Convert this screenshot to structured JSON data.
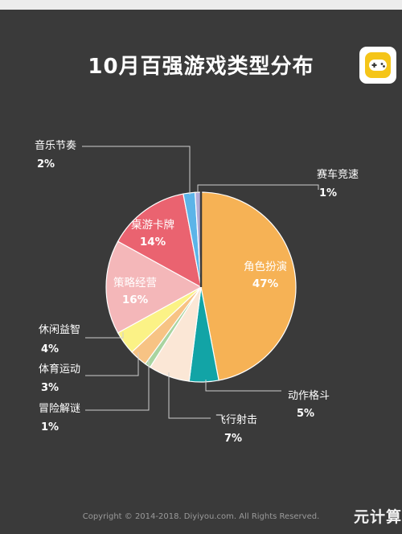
{
  "title": "10月百强游戏类型分布",
  "copyright": "Copyright © 2014-2018. Diyiyou.com. All Rights Reserved.",
  "watermark": "元计算",
  "logo_icon": "gamepad-icon",
  "chart_data": {
    "type": "pie",
    "title": "10月百强游戏类型分布",
    "slices": [
      {
        "label": "角色扮演",
        "value": 47,
        "pct": "47%",
        "color": "#f6b255"
      },
      {
        "label": "动作格斗",
        "value": 5,
        "pct": "5%",
        "color": "#12a4a6"
      },
      {
        "label": "飞行射击",
        "value": 7,
        "pct": "7%",
        "color": "#fbe7d6"
      },
      {
        "label": "冒险解谜",
        "value": 1,
        "pct": "1%",
        "color": "#a8d4a0"
      },
      {
        "label": "体育运动",
        "value": 3,
        "pct": "3%",
        "color": "#f7c384"
      },
      {
        "label": "休闲益智",
        "value": 4,
        "pct": "4%",
        "color": "#fbf286"
      },
      {
        "label": "策略经营",
        "value": 16,
        "pct": "16%",
        "color": "#f4b7b9"
      },
      {
        "label": "桌游卡牌",
        "value": 14,
        "pct": "14%",
        "color": "#ea6370"
      },
      {
        "label": "音乐节奏",
        "value": 2,
        "pct": "2%",
        "color": "#5cb4e8"
      },
      {
        "label": "赛车竞速",
        "value": 1,
        "pct": "1%",
        "color": "#b3acd8"
      }
    ]
  }
}
